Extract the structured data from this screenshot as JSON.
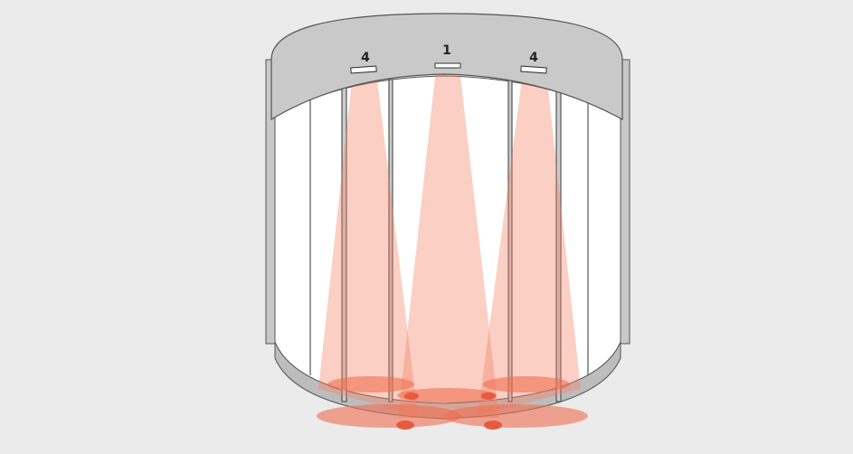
{
  "sensors": [
    {
      "label": "4"
    },
    {
      "label": "1"
    },
    {
      "label": "4"
    }
  ]
}
